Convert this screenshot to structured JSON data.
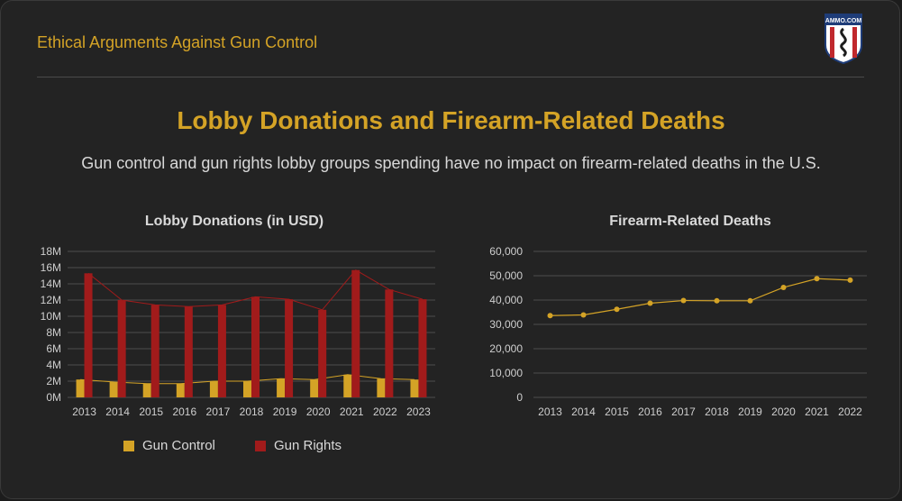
{
  "header": {
    "title": "Ethical Arguments Against Gun Control",
    "logo_text": "AMMO.COM"
  },
  "main_title": "Lobby Donations and Firearm-Related Deaths",
  "subtitle": "Gun control and gun rights lobby groups spending have no impact on firearm-related deaths in the U.S.",
  "colors": {
    "gold": "#d4a326",
    "red": "#a11b1b",
    "grid": "#4d4d4d",
    "text": "#d9d9d9"
  },
  "chart_data": [
    {
      "type": "bar",
      "title": "Lobby Donations (in USD)",
      "categories": [
        "2013",
        "2014",
        "2015",
        "2016",
        "2017",
        "2018",
        "2019",
        "2020",
        "2021",
        "2022",
        "2023"
      ],
      "series": [
        {
          "name": "Gun Control",
          "color": "#d4a326",
          "values": [
            2.2,
            1.9,
            1.7,
            1.7,
            2.0,
            2.0,
            2.3,
            2.2,
            2.8,
            2.3,
            2.2
          ]
        },
        {
          "name": "Gun Rights",
          "color": "#a11b1b",
          "values": [
            15.3,
            12.0,
            11.4,
            11.2,
            11.4,
            12.4,
            12.1,
            10.8,
            15.7,
            13.3,
            12.1
          ]
        }
      ],
      "ylim": [
        0,
        18
      ],
      "yticks": [
        "0M",
        "2M",
        "4M",
        "6M",
        "8M",
        "10M",
        "12M",
        "14M",
        "16M",
        "18M"
      ],
      "legend": "bottom"
    },
    {
      "type": "line",
      "title": "Firearm-Related Deaths",
      "categories": [
        "2013",
        "2014",
        "2015",
        "2016",
        "2017",
        "2018",
        "2019",
        "2020",
        "2021",
        "2022"
      ],
      "values": [
        33600,
        33900,
        36200,
        38700,
        39800,
        39700,
        39700,
        45200,
        48800,
        48200
      ],
      "ylim": [
        0,
        60000
      ],
      "yticks": [
        "0",
        "10,000",
        "20,000",
        "30,000",
        "40,000",
        "50,000",
        "60,000"
      ],
      "color": "#d4a326"
    }
  ]
}
